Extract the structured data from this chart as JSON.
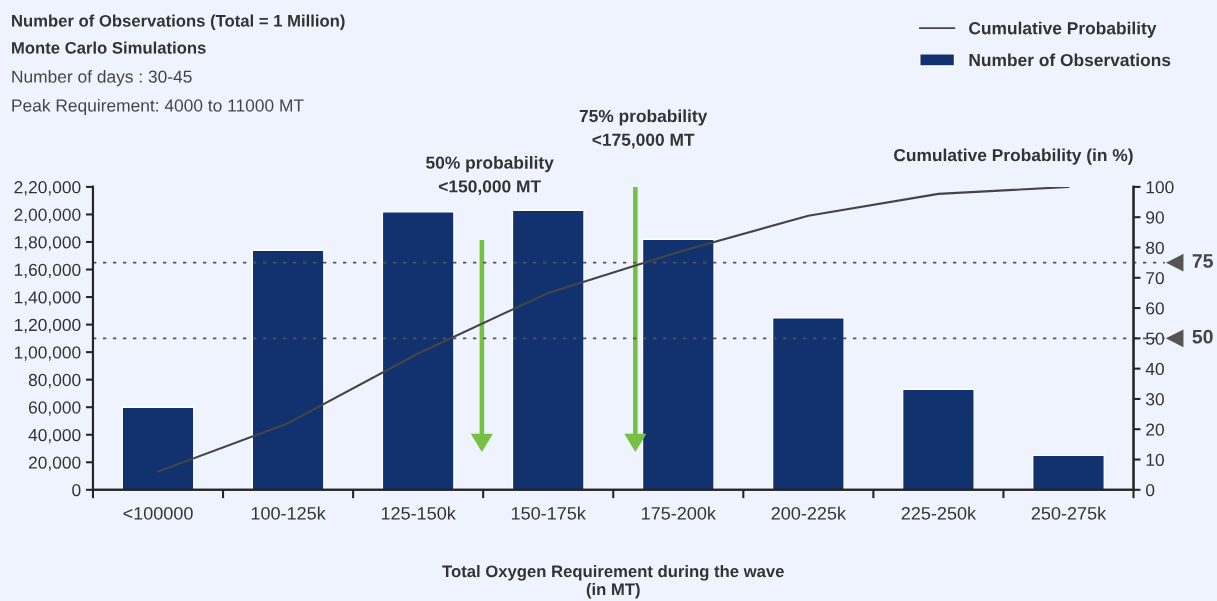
{
  "chart_data": {
    "type": "bar",
    "title": "Number of Observations (Total = 1 Million)",
    "subtitle": "Monte Carlo Simulations",
    "annotations": [
      "Number of days : 30-45",
      "Peak Requirement: 4000 to 11000 MT",
      "50% probability\n<150,000 MT",
      "75% probability\n<175,000 MT"
    ],
    "xlabel": "Total Oxygen Requirement during the wave\n(in MT)",
    "y2label": "Cumulative Probability (in %)",
    "categories": [
      "<100000",
      "100-125k",
      "125-150k",
      "150-175k",
      "175-200k",
      "200-225k",
      "225-250k",
      "250-275k"
    ],
    "series": [
      {
        "name": "Number of Observations",
        "color": "#12316f",
        "values": [
          60000,
          174000,
          202000,
          203000,
          182000,
          125000,
          73000,
          25000
        ]
      },
      {
        "name": "Cumulative Probability",
        "type": "line",
        "axis": "y2",
        "color": "#454545",
        "values": [
          6,
          22,
          45,
          65,
          78.5,
          90.5,
          97.7,
          100
        ]
      }
    ],
    "ylim": [
      0,
      220000
    ],
    "yticks": [
      0,
      {
        "value": 20000,
        "label": "20,000"
      },
      {
        "value": 40000,
        "label": "40,000"
      },
      {
        "value": 60000,
        "label": "60,000"
      },
      {
        "value": 80000,
        "label": "80,000"
      },
      {
        "value": 100000,
        "label": "1,00,000"
      },
      {
        "value": 120000,
        "label": "1,20,000"
      },
      {
        "value": 140000,
        "label": "1,40,000"
      },
      {
        "value": 160000,
        "label": "1,60,000"
      },
      {
        "value": 180000,
        "label": "1,80,000"
      },
      {
        "value": 200000,
        "label": "2,00,000"
      },
      {
        "value": 220000,
        "label": "2,20,000"
      }
    ],
    "y2lim": [
      0,
      100
    ],
    "y2ticks": [
      0,
      10,
      20,
      30,
      40,
      50,
      60,
      70,
      80,
      90,
      100
    ],
    "ref_lines": [
      {
        "axis": "y2",
        "value": 75,
        "label": "75",
        "color": "#555555",
        "line_style": "dotted"
      },
      {
        "axis": "y2",
        "value": 50,
        "label": "50",
        "color": "#555555",
        "line_style": "dotted"
      }
    ],
    "legend": "top right",
    "grid": false
  }
}
